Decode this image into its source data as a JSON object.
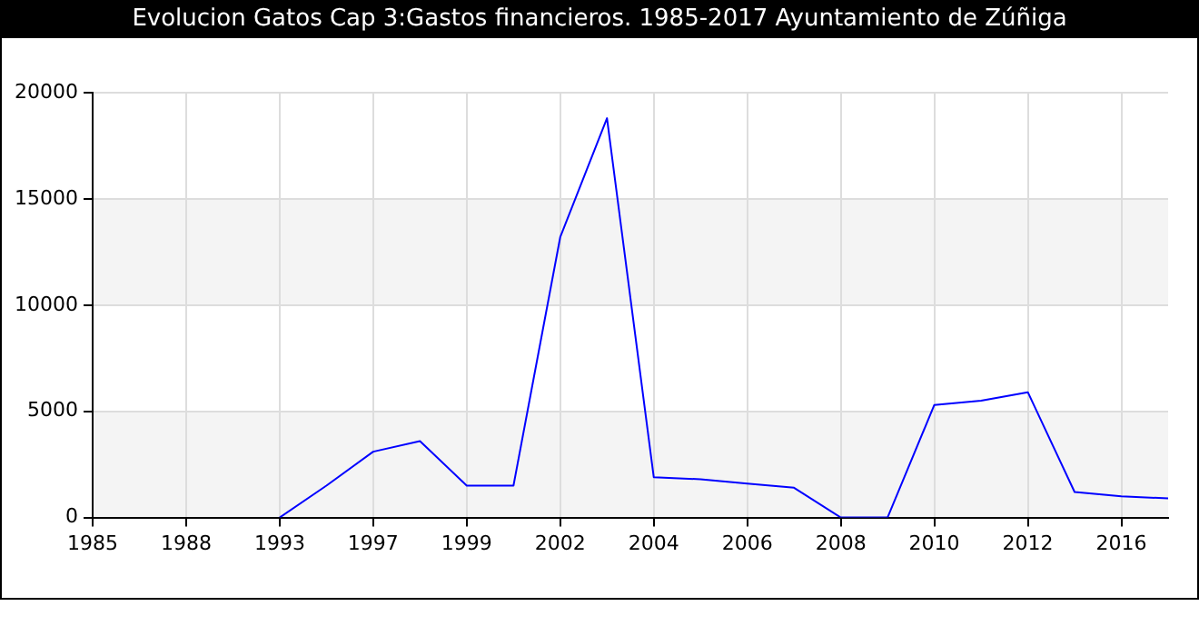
{
  "chart_data": {
    "type": "line",
    "title": "Evolucion Gatos Cap 3:Gastos financieros. 1985-2017 Ayuntamiento de Zúñiga",
    "categories": [
      "1985",
      null,
      "1988",
      null,
      "1993",
      null,
      "1997",
      null,
      "1999",
      null,
      "2002",
      null,
      "2004",
      null,
      "2006",
      null,
      "2008",
      null,
      "2010",
      null,
      "2012",
      null,
      "2016",
      null
    ],
    "series": [
      {
        "color": "#0000ff",
        "values": [
          null,
          null,
          null,
          null,
          0,
          1500,
          3100,
          3600,
          1500,
          1500,
          13200,
          18800,
          1900,
          1800,
          1600,
          1400,
          0,
          0,
          5300,
          5500,
          5900,
          1200,
          1000,
          900
        ]
      }
    ],
    "ylim": [
      0,
      20000
    ],
    "yticks": [
      0,
      5000,
      10000,
      15000,
      20000
    ],
    "grid": true,
    "legend": false,
    "marker": "none",
    "line_style": "solid"
  }
}
